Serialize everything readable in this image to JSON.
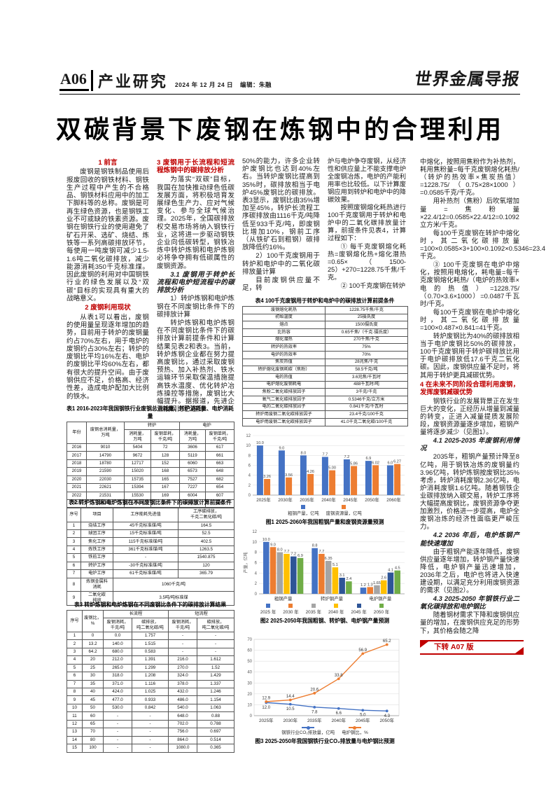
{
  "header": {
    "page_no": "A06",
    "section": "产业研究",
    "date": "2024 年 12 月 24 日",
    "editor": "编辑：朱融",
    "masthead": "世界金属导报"
  },
  "title": "双碳背景下废钢在炼钢中的合理利用",
  "article": {
    "col1": [
      {
        "type": "h1",
        "text": "1 前言"
      },
      {
        "type": "p",
        "text": "废钢是钢铁制品使用后报废回收的钢铁材料、钢铁生产过程中产生的不合格品、钢铁材料应用中的加工下脚料等的总称。废钢是可再生绿色资源，也是钢铁工业不可或缺的铁素资源。废钢在钢铁行业的使用避免了矿石开采、选矿、烧结、炼铁等一系列高碳排放环节，每使用一吨废钢可减少1.5-1.6吨二氧化碳排放，减少能源消耗350千克标准煤。因此废钢的利用对中国钢铁行业的绿色发展以及“双碳”目标的实现具有重大的战略意义。"
      },
      {
        "type": "h1",
        "text": "2 废钢利用现状"
      },
      {
        "type": "p",
        "text": "从表1可以看出，废钢的使用量呈现逐年增加的趋势，目前用于转炉的废钢量约占70%左右，用于电炉的废钢约占30%左右；转炉的废钢比平均16%左右、电炉的废钢比平均60%左右，都有很大的提升空间。由于废钢供应不足，价格高、经济性差，造成电炉配加大比例的铁水。"
      }
    ],
    "col2": [
      {
        "type": "hr",
        "text": "3 废钢用于长流程和短流程炼钢中的碳排放分析"
      },
      {
        "type": "p",
        "text": "为落实“双碳”目标，我国在加快推动绿色低碳发展方面，将积极培育发展绿色生产力、应对气候变化、参与全球气候治理。2025年，全国碳排放权交易市场将纳入钢铁行业，这将进一步驱动钢铁企业向低碳转型，钢铁冶炼中转炉炼钢和电炉炼钢必将争夺拥有低碳属性的废钢资源。"
      },
      {
        "type": "hi",
        "text": "3.1 废钢用于转炉长流程和电炉短流程中的碳排放分析"
      },
      {
        "type": "p",
        "text": "1）转炉炼钢和电炉炼钢在不同废钢比条件下的碳排放计算"
      },
      {
        "type": "p",
        "text": "转炉炼钢和电炉炼钢在不同废钢比条件下的碳排放计算前提条件和计算结果见表2和表3。当前，转炉炼钢企业都在努力提高废钢比，通过采取废钢预热、加入补热剂、铁水运输环节采取保温措施提高铁水温度、优化转炉冶炼操控等措施，废钢比大幅提升。据报道，先进企业废钢比已达到"
      }
    ],
    "col3": [
      {
        "type": "pc",
        "text": "50%的能力，许多企业转炉废钢比也达到40%左右。当转炉废钢比提高到35%时，碳排放相当于电炉45%废钢比的碳排放。表3显示，废钢比由35%增加至45%，转炉长流程工序碳排放由1116千克/吨降低至933千克/吨，即废钢比增加10%，钢前工序（从铁矿石到粗钢）碳排放降低约16%。"
      },
      {
        "type": "p",
        "text": "2）100千克废钢用于转炉和电炉中的二氧化碳排放量计算"
      },
      {
        "type": "p",
        "text": "目前废钢供应量不足，转"
      }
    ],
    "col4": [
      {
        "type": "pc",
        "text": "炉与电炉争夺废钢，从经济性和供应量上不能支撑电炉全废钢冶炼，电炉的产能利用率也比较低。以下计算废钢应用到转炉和电炉中的降碳效果。"
      },
      {
        "type": "p",
        "text": "按照废钢熔化耗热进行100千克废钢用于转炉和电炉中的二氧化碳排放量计算，前提条件见表4，计算过程如下："
      },
      {
        "type": "p",
        "text": "① 每千克废钢熔化耗热=废钢熔化热+熔化潜热=0.65×（1500-25）+270=1228.75千焦/千克。"
      },
      {
        "type": "p",
        "text": "② 100千克废钢在转炉"
      }
    ],
    "col5": [
      {
        "type": "pc",
        "text": "中熔化，按照用焦粉作为补热剂，耗用焦粉量=每千克废钢熔化耗热/（转炉的热效率×焦炭热值）=1228.75/（0.75×28×1000）=0.0585千克/千克。"
      },
      {
        "type": "p",
        "text": "用补热剂（焦粉）后吹氧增加量=焦粉量×22.4/12=0.0585×22.4/12=0.1092立方米/千克。"
      },
      {
        "type": "p",
        "text": "每100千克废钢在转炉中熔化时，其二氧化碳排放量=100×0.0585×3+100×0.1092×0.5346=23.4千克。"
      },
      {
        "type": "p",
        "text": "③ 100千克废钢在电炉中熔化，按照用电熔化，耗电量=每千克废钢熔化耗热/（电炉的热效率×电的热值）=1228.75/（0.70×3.6×1000）=0.0487千瓦时/千克。"
      },
      {
        "type": "p",
        "text": "每100千克废钢在电炉中熔化时，其二氧化碳排放量=100×0.487×0.841=41千克。"
      },
      {
        "type": "p",
        "text": "转炉废钢比为40%的碳排放相当于电炉废钢比50%的碳排放，100千克废钢用于转炉碳排放比用于电炉碳排放低17.6千克二氧化碳。因此，废钢供应量不足时，将其用于转炉更具减碳优势。"
      },
      {
        "type": "hr",
        "text": "4 在未来不同阶段合理利用废钢，发挥废钢减碳优势"
      },
      {
        "type": "p",
        "text": "钢铁行业的发展背景正在发生巨大的变化，正经历从增量到减量的转变，正进入减量提质发展阶段，废钢资源量逐步增加，粗钢产量将逐步减少（见图1）。"
      },
      {
        "type": "hi",
        "text": "4.1 2025-2035 年废钢利用情况"
      },
      {
        "type": "p",
        "text": "2035年，粗钢产量预计降至8亿吨，用于钢铁冶炼的废钢量约3.96亿吨，转炉炼钢按废钢比35%考虑，转炉消耗废钢2.36亿吨，电炉消耗废钢1.6亿吨。随着钢铁企业碳排放纳入碳交易，转炉工序将大幅提高废钢比，废钢资源争夺更加激烈，价格进一步提高，电炉全废钢冶炼的经济性面临更严峻压力。"
      },
      {
        "type": "hi",
        "text": "4.2 2036 年后，电炉炼钢产能快速增加"
      },
      {
        "type": "p",
        "text": "由于粗钢产能逐年降低，废钢供应量逐年增加，转炉钢产量快速降低，电炉钢产量迅速增加，2036年之后，电炉也将进入快速建设期，以满足充分利用废钢资源的需求（见图2）。"
      },
      {
        "type": "hi",
        "text": "4.3 2025-2050 年钢铁行业二氧化碳排放和电炉钢比"
      },
      {
        "type": "p",
        "text": "随着钢材需求下降和废钢供应量的增加，在废钢供应充足的形势下，其价格会随之降"
      }
    ]
  },
  "continuation": {
    "label": "下转 A07 版"
  },
  "tables": {
    "t1": {
      "caption": "表1 2016-2023年我国钢铁行业废钢总消耗量、转炉消耗量、电炉消耗量",
      "header": [
        [
          {
            "t": "年份",
            "rs": 2
          },
          {
            "t": "废钢总消耗量，\n万吨",
            "rs": 2
          },
          {
            "t": "转炉",
            "cs": 2
          },
          {
            "t": "电炉",
            "cs": 2
          }
        ],
        [
          {
            "t": "消耗量，\n万吨"
          },
          {
            "t": "废钢单耗，\n千克/吨"
          },
          {
            "t": "消耗量，\n万吨"
          },
          {
            "t": "废钢单耗，\n千克/吨"
          }
        ]
      ],
      "rows": [
        [
          "2016",
          "9010",
          "5404",
          "72",
          "3606",
          "617"
        ],
        [
          "2017",
          "14790",
          "9672",
          "128",
          "5119",
          "661"
        ],
        [
          "2018",
          "18780",
          "12717",
          "152",
          "6060",
          "663"
        ],
        [
          "2019",
          "21590",
          "15020",
          "168",
          "6573",
          "648"
        ],
        [
          "2020",
          "22030",
          "15735",
          "165",
          "7527",
          "682"
        ],
        [
          "2021",
          "22621",
          "15394",
          "167",
          "7227",
          "654"
        ],
        [
          "2022",
          "21531",
          "15530",
          "169",
          "6004",
          "607"
        ],
        [
          "2023",
          "21368",
          "15464",
          "168",
          "5904",
          "600"
        ]
      ]
    },
    "t2": {
      "caption": "表2 转炉炼钢和电炉炼钢在不同废钢比条件下的碳排放计算前提条件",
      "header": [
        [
          {
            "t": "序号"
          },
          {
            "t": "项目"
          },
          {
            "t": "工序能耗先进值"
          },
          {
            "t": "工序碳排放，\n千克二氧化碳/吨"
          }
        ]
      ],
      "rows": [
        [
          "1",
          "烧结工序",
          "45千克标准煤/吨",
          "164.5"
        ],
        [
          "2",
          "球团工序",
          "15千克标准煤/吨",
          "52.5"
        ],
        [
          "3",
          "焦化工序",
          "115千克标准煤/吨",
          "402.5"
        ],
        [
          "4",
          "炼铁工序",
          "361千克标准煤/吨",
          "1263.5"
        ],
        [
          "5",
          "铁前工序",
          "-",
          "1540.875"
        ],
        [
          "6",
          "转炉工序",
          "-30千克标准煤/吨",
          "120"
        ],
        [
          "7",
          "电炉工序",
          "61千克标准煤/吨",
          "365.79"
        ],
        [
          "8",
          "炼钢金属料\n消耗",
          {
            "t": "1060千克/吨",
            "cs": 2
          }
        ],
        [
          "9",
          "二氧化碳\n排放",
          {
            "t": "3.5吨/吨标准煤",
            "cs": 2
          }
        ]
      ]
    },
    "t3": {
      "caption": "表3 转炉炼钢和电炉炼钢在不同废钢比条件下的碳排放计算结果",
      "header": [
        [
          {
            "t": "序号",
            "rs": 2
          },
          {
            "t": "废钢比，\n%",
            "rs": 2
          },
          {
            "t": "长流程",
            "cs": 2
          },
          {
            "t": "短流程",
            "cs": 2
          }
        ],
        [
          {
            "t": "废钢消耗，\n千克/吨"
          },
          {
            "t": "碳排放，\n吨二氧化碳/吨"
          },
          {
            "t": "废钢消耗，\n千克/吨"
          },
          {
            "t": "碳排放，\n吨二氧化碳/吨"
          }
        ]
      ],
      "rows": [
        [
          "1",
          "0",
          "0.0",
          "1.757",
          "-",
          "-"
        ],
        [
          "2",
          "13.2",
          "140.0",
          "1.515",
          "-",
          "-"
        ],
        [
          "3",
          "64.2",
          "680.0",
          "0.583",
          "-",
          "-"
        ],
        [
          "4",
          "20",
          "212.0",
          "1.391",
          "216.0",
          "1.612"
        ],
        [
          "5",
          "25",
          "265.0",
          "1.299",
          "270.0",
          "1.52"
        ],
        [
          "6",
          "30",
          "318.0",
          "1.208",
          "324.0",
          "1.429"
        ],
        [
          "7",
          "35",
          "371.0",
          "1.116",
          "378.0",
          "1.337"
        ],
        [
          "8",
          "40",
          "424.0",
          "1.025",
          "432.0",
          "1.246"
        ],
        [
          "9",
          "45",
          "477.0",
          "0.933",
          "486.0",
          "1.154"
        ],
        [
          "10",
          "50",
          "530.0",
          "0.842",
          "540.0",
          "1.063"
        ],
        [
          "11",
          "60",
          "-",
          "-",
          "648.0",
          "0.88"
        ],
        [
          "12",
          "65",
          "-",
          "-",
          "702.0",
          "0.788"
        ],
        [
          "13",
          "70",
          "-",
          "-",
          "756.0",
          "0.697"
        ],
        [
          "14",
          "80",
          "-",
          "-",
          "864.0",
          "0.514"
        ],
        [
          "15",
          "100",
          "-",
          "-",
          "1080.0",
          "0.365"
        ]
      ]
    },
    "t4": {
      "caption": "表4 100千克废钢用于转炉和电炉中的碳排放计算前提条件",
      "header": [],
      "rows": [
        [
          "废钢熔化耗热",
          "1228.75千焦/千克"
        ],
        [
          "初始温度",
          "25摄氏度"
        ],
        [
          "熔点",
          "1500摄氏度"
        ],
        [
          "比热容",
          "0.65千焦/（千克·摄氏度）"
        ],
        [
          "熔化潜热",
          "270千焦/千克"
        ],
        [
          "转炉的热效率",
          "75%"
        ],
        [
          "电炉的热效率",
          "70%"
        ],
        [
          "焦炭热值",
          "28兆焦/千克"
        ],
        [
          "转炉熔化废钢耗碳（焦粉）",
          "58.5千克/吨"
        ],
        [
          "电的热值",
          "3.6兆焦/千瓦时"
        ],
        [
          "电炉熔化废钢耗电",
          "488千瓦时/吨"
        ],
        [
          "焦粉二氧化碳排放因子",
          "3千克/千克"
        ],
        [
          "氧气二氧化碳排放因子",
          "0.5346千克/立方米"
        ],
        [
          "电的二氧化碳排放因子",
          "0.841千克/千瓦时"
        ],
        [
          "转炉用废钢二氧化碳排放因子",
          "23.4千克/100千克"
        ],
        [
          "电炉用废钢二氧化碳排放因子",
          "41.0千克二氧化碳/100千克"
        ]
      ]
    }
  },
  "chart_data": [
    {
      "id": "fig1",
      "type": "bar",
      "title": "图1 2025-2060年我国粗钢产量和废钢资源量预测",
      "categories": [
        "2025年",
        "2030年",
        "2035年",
        "2040年",
        "2045年",
        "2050年",
        "2060年"
      ],
      "series": [
        {
          "name": "粗钢产量，亿吨",
          "color": "#4472c4",
          "values": [
            10.0,
            9.0,
            8.0,
            7.7,
            7.2,
            6.9,
            6.0
          ],
          "labels": [
            "10.0",
            "9.0",
            "8.0",
            "7.7",
            "7.2",
            "6.9",
            "6.0"
          ]
        },
        {
          "name": "废钢资源量，亿吨",
          "color": "#ed7d31",
          "values": [
            3.26,
            3.56,
            4.26,
            5.0,
            5.86,
            6.02,
            6.27
          ],
          "labels": [
            "3.26",
            "3.56",
            "4.26",
            "5.00",
            "5.86",
            "6.02",
            "6.27"
          ]
        }
      ],
      "ylim": [
        0,
        12
      ],
      "ystep": 2,
      "grid": true,
      "legend_position": "bottom"
    },
    {
      "id": "fig2",
      "type": "bar",
      "title": "图2 2025-2050年我国粗钢、转炉钢、电炉钢产量预测",
      "ylabel": "产量，亿吨",
      "categories": [
        "粗钢产量",
        "转炉钢产量",
        "电炉钢产量"
      ],
      "series": [
        {
          "name": "2025 年",
          "color": "#4472c4",
          "values": [
            10.0,
            8.8,
            1.2
          ],
          "labels": [
            "10.0",
            "8.8",
            "1.2"
          ]
        },
        {
          "name": "2030 年",
          "color": "#ed7d31",
          "values": [
            9.0,
            7.7,
            1.3
          ],
          "labels": [
            "9.0",
            "7.7",
            "1.3"
          ]
        },
        {
          "name": "2035 年",
          "color": "#a5a5a5",
          "values": [
            8.0,
            6.35,
            1.65
          ],
          "labels": [
            "8.0",
            "6.35",
            "1.65"
          ]
        },
        {
          "name": "2040 年",
          "color": "#ffc000",
          "values": [
            7.7,
            5.1,
            2.6
          ],
          "labels": [
            "7.7",
            "5.1",
            "2.6"
          ]
        },
        {
          "name": "2045 年",
          "color": "#2e5597",
          "values": [
            7.2,
            3.1,
            4.1
          ],
          "labels": [
            "7.2",
            "3.1",
            "4.1"
          ]
        },
        {
          "name": "2050 年",
          "color": "#70ad47",
          "values": [
            6.9,
            2.4,
            4.5
          ],
          "labels": [
            "6.9",
            "2.4",
            "4.5"
          ]
        }
      ],
      "ylim": [
        0,
        12
      ],
      "ystep": 2,
      "grid": true,
      "legend_position": "bottom"
    },
    {
      "id": "fig3",
      "type": "line",
      "title": "图3 2025-2050年我国钢铁行业CO₂排放量与电炉钢比预测",
      "categories": [
        "2025年",
        "2030年",
        "2035年",
        "2040年",
        "2045年",
        "2050年"
      ],
      "series": [
        {
          "name": "钢铁行业CO₂排放量，亿吨",
          "color": "#4472c4",
          "values": [
            12.0,
            10.5,
            7.8,
            6.6,
            5.0,
            4.3
          ],
          "labels": [
            "12.0",
            "10.5",
            "7.8",
            "6.6",
            "5.0",
            "4.3"
          ],
          "label_pos": "below"
        },
        {
          "name": "电炉钢比，%",
          "color": "#ed7d31",
          "values": [
            12.9,
            14.4,
            20.6,
            33.8,
            56.9,
            65.2
          ],
          "labels": [
            "12.9",
            "14.4",
            "20.6",
            "33.8",
            "56.9",
            "65.2"
          ],
          "label_pos": "above"
        }
      ],
      "ylim": [
        0,
        70
      ],
      "ystep": 10,
      "grid": true,
      "legend_position": "bottom"
    }
  ]
}
